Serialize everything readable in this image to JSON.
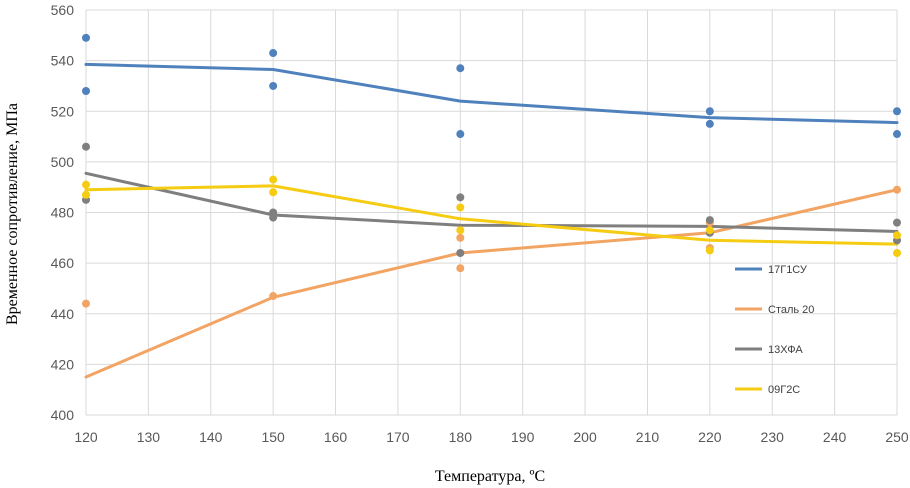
{
  "chart_data": {
    "type": "line",
    "xlabel": "Температура, ºC",
    "ylabel": "Временное сопротивление, МПа",
    "xlim": [
      120,
      250
    ],
    "ylim": [
      400,
      560
    ],
    "xticks": [
      120,
      130,
      140,
      150,
      160,
      170,
      180,
      190,
      200,
      210,
      220,
      230,
      240,
      250
    ],
    "yticks": [
      400,
      420,
      440,
      460,
      480,
      500,
      520,
      540,
      560
    ],
    "grid": true,
    "legend_position": "right",
    "series": [
      {
        "name": "17Г1СУ",
        "color": "#4f81bd",
        "line": [
          [
            120,
            538.5
          ],
          [
            150,
            536.5
          ],
          [
            180,
            524
          ],
          [
            220,
            517.5
          ],
          [
            250,
            515.5
          ]
        ],
        "points": [
          [
            120,
            549
          ],
          [
            120,
            528
          ],
          [
            150,
            543
          ],
          [
            150,
            530
          ],
          [
            180,
            537
          ],
          [
            180,
            511
          ],
          [
            220,
            520
          ],
          [
            220,
            515
          ],
          [
            250,
            520
          ],
          [
            250,
            511
          ]
        ]
      },
      {
        "name": "Сталь 20",
        "color": "#f2a463",
        "line": [
          [
            120,
            415
          ],
          [
            150,
            446.5
          ],
          [
            180,
            464
          ],
          [
            220,
            472
          ],
          [
            250,
            489
          ]
        ],
        "points": [
          [
            120,
            444
          ],
          [
            150,
            447
          ],
          [
            180,
            470
          ],
          [
            180,
            458
          ],
          [
            220,
            476
          ],
          [
            220,
            466
          ],
          [
            250,
            489
          ]
        ]
      },
      {
        "name": "13ХФА",
        "color": "#7f7f7f",
        "line": [
          [
            120,
            495.5
          ],
          [
            150,
            479
          ],
          [
            180,
            475
          ],
          [
            220,
            474.5
          ],
          [
            250,
            472.5
          ]
        ],
        "points": [
          [
            120,
            506
          ],
          [
            120,
            485
          ],
          [
            150,
            480
          ],
          [
            150,
            478
          ],
          [
            180,
            486
          ],
          [
            180,
            464
          ],
          [
            220,
            477
          ],
          [
            220,
            472
          ],
          [
            250,
            476
          ],
          [
            250,
            469
          ]
        ]
      },
      {
        "name": "09Г2С",
        "color": "#f5cc11",
        "line": [
          [
            120,
            489
          ],
          [
            150,
            490.5
          ],
          [
            180,
            477.5
          ],
          [
            220,
            469
          ],
          [
            250,
            467.5
          ]
        ],
        "points": [
          [
            120,
            491
          ],
          [
            120,
            487
          ],
          [
            150,
            493
          ],
          [
            150,
            488
          ],
          [
            180,
            482
          ],
          [
            180,
            473
          ],
          [
            220,
            473
          ],
          [
            220,
            465
          ],
          [
            250,
            471
          ],
          [
            250,
            464
          ]
        ]
      }
    ]
  }
}
